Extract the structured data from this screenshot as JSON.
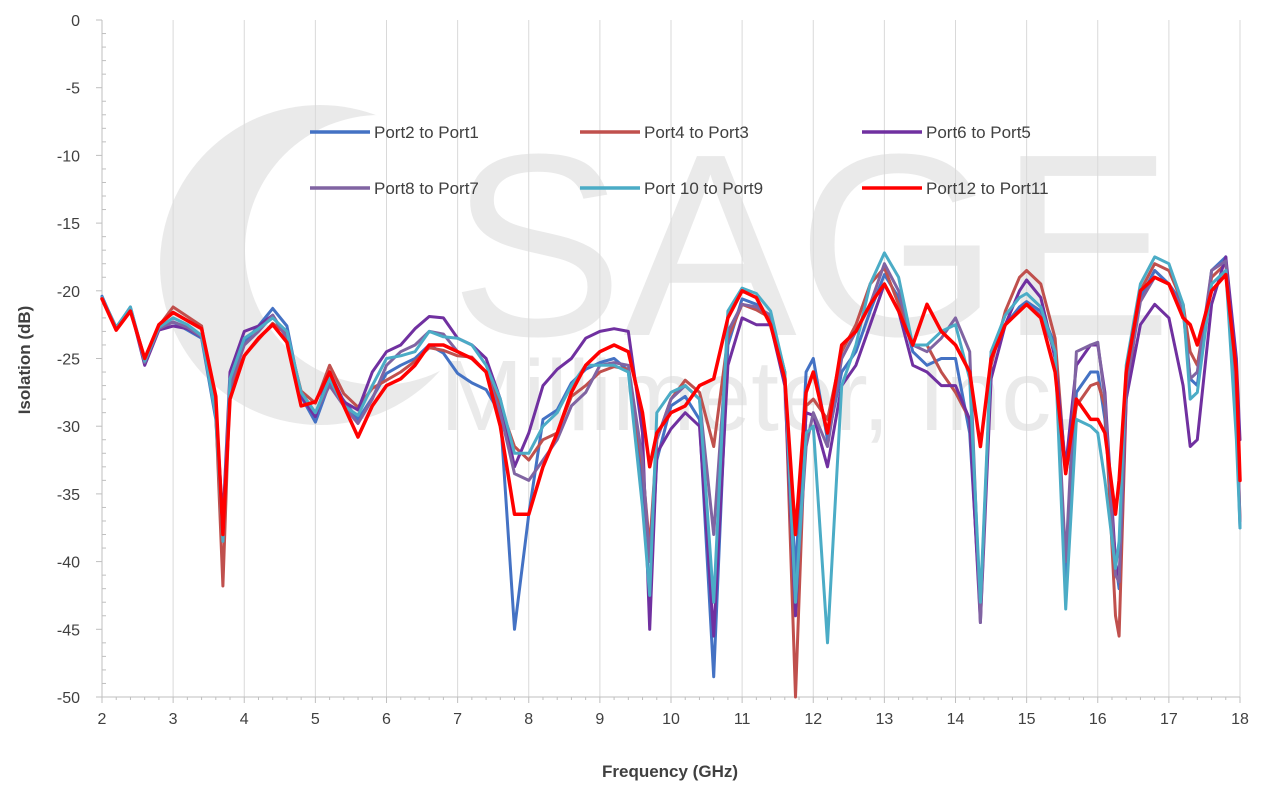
{
  "watermark": {
    "text_main": "SAGE",
    "text_sub": "Millimeter, Inc."
  },
  "chart_data": {
    "type": "line",
    "title": "",
    "xlabel": "Frequency (GHz)",
    "ylabel": "Isolation (dB)",
    "xlim": [
      2,
      18
    ],
    "ylim": [
      -50,
      0
    ],
    "x_ticks": [
      2,
      3,
      4,
      5,
      6,
      7,
      8,
      9,
      10,
      11,
      12,
      13,
      14,
      15,
      16,
      17,
      18
    ],
    "y_ticks": [
      0,
      -5,
      -10,
      -15,
      -20,
      -25,
      -30,
      -35,
      -40,
      -45,
      -50
    ],
    "grid": "vertical major gridlines",
    "legend_position": "top-center, inside plot, 3 columns",
    "x": [
      2.0,
      2.2,
      2.4,
      2.6,
      2.8,
      3.0,
      3.2,
      3.4,
      3.6,
      3.7,
      3.8,
      4.0,
      4.2,
      4.4,
      4.6,
      4.8,
      5.0,
      5.2,
      5.4,
      5.6,
      5.8,
      6.0,
      6.2,
      6.4,
      6.6,
      6.8,
      7.0,
      7.2,
      7.4,
      7.6,
      7.8,
      8.0,
      8.2,
      8.4,
      8.6,
      8.8,
      9.0,
      9.2,
      9.4,
      9.6,
      9.7,
      9.8,
      10.0,
      10.2,
      10.4,
      10.6,
      10.8,
      11.0,
      11.2,
      11.4,
      11.6,
      11.75,
      11.9,
      12.0,
      12.2,
      12.4,
      12.6,
      12.8,
      13.0,
      13.2,
      13.4,
      13.6,
      13.8,
      14.0,
      14.2,
      14.35,
      14.5,
      14.7,
      14.9,
      15.0,
      15.2,
      15.4,
      15.55,
      15.7,
      15.9,
      16.0,
      16.1,
      16.25,
      16.3,
      16.4,
      16.6,
      16.8,
      17.0,
      17.2,
      17.3,
      17.4,
      17.6,
      17.8,
      17.95,
      18.0
    ],
    "series": [
      {
        "name": "Port2 to Port1",
        "color": "#4472c4",
        "values": [
          -20.4,
          -22.8,
          -21.2,
          -25.1,
          -22.8,
          -22.3,
          -22.9,
          -23.5,
          -29.5,
          -38.5,
          -27.5,
          -23.8,
          -22.6,
          -21.3,
          -22.6,
          -27.8,
          -29.7,
          -26.8,
          -28.1,
          -29.5,
          -27.9,
          -26.1,
          -25.5,
          -25.0,
          -24.0,
          -24.6,
          -26.1,
          -26.8,
          -27.3,
          -29.1,
          -45.0,
          -36.5,
          -29.5,
          -28.8,
          -26.8,
          -25.8,
          -25.3,
          -25.0,
          -25.9,
          -34.5,
          -42.5,
          -32.5,
          -28.5,
          -27.8,
          -29.5,
          -48.5,
          -24.0,
          -20.6,
          -21.0,
          -22.2,
          -26.5,
          -41.0,
          -26.0,
          -25.0,
          -31.0,
          -26.0,
          -24.5,
          -21.5,
          -18.8,
          -20.5,
          -24.5,
          -25.5,
          -25.0,
          -25.0,
          -30.5,
          -43.5,
          -25.0,
          -22.5,
          -21.2,
          -20.8,
          -21.5,
          -24.0,
          -41.5,
          -27.5,
          -26.0,
          -26.0,
          -29.5,
          -40.0,
          -42.0,
          -27.0,
          -20.5,
          -18.5,
          -19.5,
          -21.0,
          -26.5,
          -27.0,
          -18.5,
          -17.5,
          -29.5,
          -37.5
        ]
      },
      {
        "name": "Port4 to Port3",
        "color": "#c0504d",
        "values": [
          -20.6,
          -22.8,
          -21.4,
          -25.0,
          -22.6,
          -21.2,
          -21.9,
          -22.6,
          -29.0,
          -41.8,
          -27.0,
          -24.8,
          -23.6,
          -22.4,
          -23.2,
          -27.4,
          -28.3,
          -25.5,
          -27.6,
          -28.6,
          -27.2,
          -26.6,
          -26.0,
          -25.2,
          -24.2,
          -24.4,
          -24.8,
          -24.9,
          -26.0,
          -28.5,
          -31.5,
          -32.5,
          -31.0,
          -30.5,
          -27.8,
          -27.0,
          -26.0,
          -25.6,
          -25.8,
          -33.0,
          -39.0,
          -31.0,
          -28.0,
          -26.6,
          -27.5,
          -31.5,
          -23.5,
          -21.0,
          -21.4,
          -22.0,
          -26.0,
          -50.0,
          -28.5,
          -28.0,
          -29.5,
          -24.5,
          -22.5,
          -19.5,
          -18.3,
          -21.0,
          -24.0,
          -24.0,
          -26.0,
          -27.5,
          -29.5,
          -44.0,
          -25.5,
          -21.5,
          -19.0,
          -18.5,
          -19.5,
          -23.5,
          -33.5,
          -28.5,
          -27.0,
          -26.8,
          -28.5,
          -44.0,
          -45.5,
          -28.0,
          -20.0,
          -18.0,
          -18.5,
          -21.0,
          -24.5,
          -25.5,
          -19.0,
          -18.0,
          -28.5,
          -37.0
        ]
      },
      {
        "name": "Port6 to Port5",
        "color": "#7030a0",
        "values": [
          -20.5,
          -22.7,
          -21.3,
          -25.5,
          -22.9,
          -22.6,
          -22.8,
          -23.4,
          -28.6,
          -37.0,
          -26.0,
          -23.0,
          -22.6,
          -21.8,
          -23.5,
          -27.8,
          -29.3,
          -26.0,
          -28.2,
          -28.8,
          -26.0,
          -24.5,
          -24.0,
          -22.8,
          -21.9,
          -22.0,
          -23.5,
          -24.0,
          -25.0,
          -28.0,
          -33.0,
          -30.5,
          -27.0,
          -25.8,
          -25.0,
          -23.5,
          -23.0,
          -22.8,
          -23.0,
          -30.5,
          -45.0,
          -32.0,
          -30.2,
          -29.0,
          -30.0,
          -45.5,
          -25.5,
          -22.0,
          -22.5,
          -22.5,
          -27.0,
          -44.0,
          -29.0,
          -29.2,
          -33.0,
          -27.0,
          -25.5,
          -22.5,
          -19.5,
          -21.5,
          -25.5,
          -26.0,
          -27.0,
          -27.0,
          -29.5,
          -44.5,
          -26.5,
          -22.5,
          -20.0,
          -19.2,
          -20.5,
          -25.0,
          -33.0,
          -25.5,
          -24.0,
          -24.0,
          -27.5,
          -40.0,
          -41.5,
          -28.0,
          -22.5,
          -21.0,
          -22.0,
          -27.0,
          -31.5,
          -31.0,
          -21.0,
          -17.5,
          -25.0,
          -31.0
        ]
      },
      {
        "name": "Port8 to Port7",
        "color": "#8064a2",
        "values": [
          -20.5,
          -22.8,
          -21.3,
          -25.3,
          -22.8,
          -22.3,
          -22.7,
          -23.4,
          -29.0,
          -38.0,
          -27.0,
          -24.0,
          -23.0,
          -21.8,
          -23.5,
          -27.5,
          -29.0,
          -27.0,
          -28.5,
          -29.8,
          -28.0,
          -25.5,
          -24.5,
          -24.0,
          -23.0,
          -23.2,
          -24.5,
          -25.0,
          -26.0,
          -29.0,
          -33.5,
          -34.0,
          -32.5,
          -31.0,
          -28.5,
          -27.5,
          -25.5,
          -25.3,
          -25.5,
          -32.5,
          -40.0,
          -31.0,
          -28.0,
          -27.0,
          -28.0,
          -38.0,
          -23.0,
          -21.0,
          -21.2,
          -21.8,
          -26.0,
          -43.0,
          -31.5,
          -29.0,
          -31.5,
          -25.0,
          -23.0,
          -21.0,
          -18.0,
          -20.0,
          -24.0,
          -24.5,
          -23.5,
          -22.0,
          -24.5,
          -44.5,
          -24.5,
          -22.5,
          -21.5,
          -21.0,
          -21.8,
          -24.5,
          -40.0,
          -24.5,
          -24.0,
          -23.8,
          -28.0,
          -41.0,
          -41.5,
          -27.0,
          -20.8,
          -19.0,
          -19.5,
          -21.5,
          -26.5,
          -26.0,
          -18.5,
          -17.8,
          -28.0,
          -37.0
        ]
      },
      {
        "name": "Port 10 to Port9",
        "color": "#4bacc6",
        "values": [
          -20.5,
          -22.7,
          -21.2,
          -25.2,
          -22.7,
          -22.0,
          -22.5,
          -23.3,
          -29.2,
          -38.5,
          -26.5,
          -23.5,
          -22.8,
          -22.0,
          -23.0,
          -27.5,
          -29.0,
          -26.5,
          -28.5,
          -29.2,
          -27.0,
          -25.0,
          -24.8,
          -24.5,
          -23.0,
          -23.4,
          -23.5,
          -24.0,
          -25.5,
          -28.0,
          -32.0,
          -32.0,
          -30.0,
          -29.0,
          -27.0,
          -25.5,
          -25.5,
          -25.5,
          -26.0,
          -36.0,
          -42.5,
          -29.0,
          -27.5,
          -27.0,
          -28.0,
          -43.0,
          -21.5,
          -19.8,
          -20.2,
          -21.5,
          -26.0,
          -43.0,
          -30.5,
          -30.0,
          -46.0,
          -27.0,
          -24.0,
          -19.5,
          -17.2,
          -19.0,
          -24.0,
          -24.0,
          -23.0,
          -22.5,
          -26.5,
          -43.0,
          -24.5,
          -21.8,
          -20.5,
          -20.2,
          -21.2,
          -24.5,
          -43.5,
          -29.5,
          -30.0,
          -30.5,
          -34.0,
          -40.5,
          -38.5,
          -25.5,
          -19.5,
          -17.5,
          -18.0,
          -21.0,
          -28.0,
          -27.5,
          -19.5,
          -18.5,
          -31.0,
          -37.5
        ]
      },
      {
        "name": "Port12 to Port11",
        "color": "#ff0000",
        "values": [
          -20.6,
          -22.9,
          -21.5,
          -25.0,
          -22.5,
          -21.6,
          -22.2,
          -22.8,
          -27.8,
          -38.0,
          -28.0,
          -24.8,
          -23.5,
          -22.5,
          -23.8,
          -28.5,
          -28.2,
          -26.0,
          -28.5,
          -30.8,
          -28.5,
          -27.0,
          -26.5,
          -25.5,
          -24.0,
          -24.0,
          -24.5,
          -25.0,
          -26.0,
          -30.0,
          -36.5,
          -36.5,
          -33.0,
          -30.5,
          -27.5,
          -25.5,
          -24.5,
          -24.0,
          -24.5,
          -29.0,
          -33.0,
          -30.5,
          -29.0,
          -28.5,
          -27.0,
          -26.5,
          -22.0,
          -20.0,
          -20.5,
          -22.5,
          -26.5,
          -38.0,
          -27.5,
          -26.0,
          -30.5,
          -24.0,
          -23.0,
          -21.0,
          -19.5,
          -21.5,
          -24.0,
          -21.0,
          -23.0,
          -24.0,
          -26.0,
          -31.5,
          -25.0,
          -22.5,
          -21.5,
          -21.0,
          -22.0,
          -26.0,
          -33.5,
          -28.0,
          -29.5,
          -29.5,
          -30.5,
          -36.5,
          -34.0,
          -26.0,
          -20.0,
          -19.0,
          -19.5,
          -22.0,
          -22.5,
          -24.0,
          -20.0,
          -18.8,
          -26.0,
          -34.0
        ]
      }
    ]
  }
}
